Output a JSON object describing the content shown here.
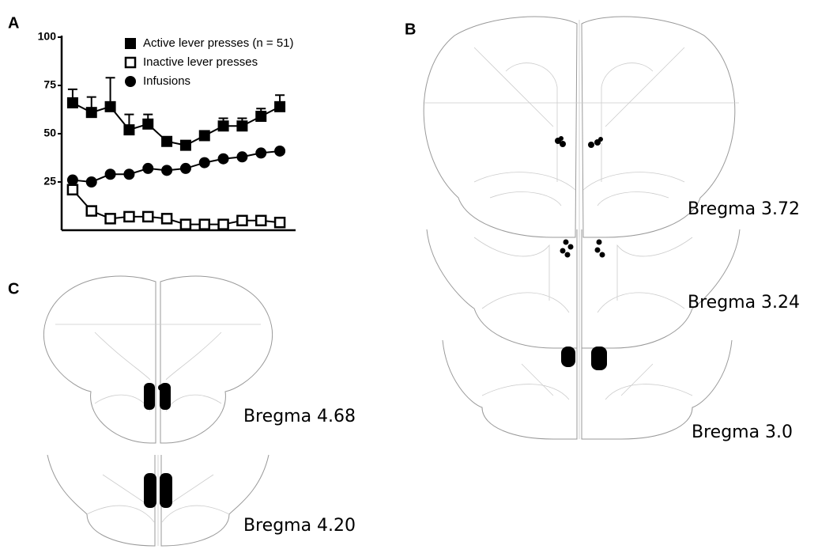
{
  "chart_data": {
    "type": "line",
    "categories": [
      null,
      null,
      null,
      null,
      null,
      null,
      null,
      null,
      null,
      null,
      null,
      null
    ],
    "series": [
      {
        "name": "Active lever presses (n = 51)",
        "color": "#000000",
        "marker": "square",
        "values": [
          66,
          61,
          64,
          52,
          55,
          46,
          44,
          49,
          54,
          54,
          59,
          64
        ],
        "errors": [
          7,
          8,
          15,
          8,
          5,
          2,
          2,
          2,
          4,
          4,
          4,
          6
        ]
      },
      {
        "name": "Inactive lever presses",
        "color": "#000000",
        "marker": "open-square",
        "values": [
          21,
          10,
          6,
          7,
          7,
          6,
          3,
          3,
          3,
          5,
          5,
          4
        ]
      },
      {
        "name": "Infusions",
        "color": "#000000",
        "marker": "circle",
        "values": [
          26,
          25,
          29,
          29,
          32,
          31,
          32,
          35,
          37,
          38,
          40,
          41
        ]
      }
    ],
    "ylim": [
      0,
      100
    ],
    "yticks": [
      25,
      50,
      75,
      100
    ],
    "grid": false,
    "legend": "top"
  },
  "panel_labels": [
    "A",
    "B",
    "C"
  ],
  "sections": [
    "Bregma 3.72",
    "Bregma 3.24",
    "Bregma 3.0",
    "Bregma 4.68",
    "Bregma 4.20"
  ]
}
